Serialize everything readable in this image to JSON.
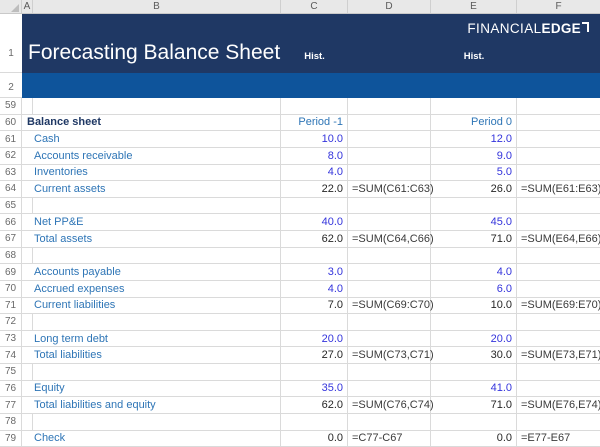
{
  "window": {
    "column_headers": [
      "A",
      "B",
      "C",
      "D",
      "E",
      "F"
    ],
    "row_numbers_top": [
      "1",
      "2"
    ]
  },
  "header": {
    "title": "Forecasting Balance Sheet",
    "hist_c": "Hist.",
    "hist_e": "Hist.",
    "logo_part1": "FINANCIAL",
    "logo_part2": "EDGE"
  },
  "colors": {
    "banner_navy": "#1F3864",
    "banner_band_blue": "#0E549B",
    "label_blue": "#2E75B6",
    "input_value_blue": "#3434DC",
    "calculated_value_black": "#262626",
    "formula_text_gray": "#3A3A3A"
  },
  "sheet": {
    "rows": [
      {
        "num": "59",
        "label": "",
        "c": "",
        "d": "",
        "e": "",
        "f": ""
      },
      {
        "num": "60",
        "label": "Balance sheet",
        "c": "Period -1",
        "d": "",
        "e": "Period 0",
        "f": ""
      },
      {
        "num": "61",
        "label": "Cash",
        "c": "10.0",
        "d": "",
        "e": "12.0",
        "f": ""
      },
      {
        "num": "62",
        "label": "Accounts receivable",
        "c": "8.0",
        "d": "",
        "e": "9.0",
        "f": ""
      },
      {
        "num": "63",
        "label": "Inventories",
        "c": "4.0",
        "d": "",
        "e": "5.0",
        "f": ""
      },
      {
        "num": "64",
        "label": "Current assets",
        "c": "22.0",
        "d": "=SUM(C61:C63)",
        "e": "26.0",
        "f": "=SUM(E61:E63)"
      },
      {
        "num": "65",
        "label": "",
        "c": "",
        "d": "",
        "e": "",
        "f": ""
      },
      {
        "num": "66",
        "label": "Net PP&E",
        "c": "40.0",
        "d": "",
        "e": "45.0",
        "f": ""
      },
      {
        "num": "67",
        "label": "Total assets",
        "c": "62.0",
        "d": "=SUM(C64,C66)",
        "e": "71.0",
        "f": "=SUM(E64,E66)"
      },
      {
        "num": "68",
        "label": "",
        "c": "",
        "d": "",
        "e": "",
        "f": ""
      },
      {
        "num": "69",
        "label": "Accounts payable",
        "c": "3.0",
        "d": "",
        "e": "4.0",
        "f": ""
      },
      {
        "num": "70",
        "label": "Accrued expenses",
        "c": "4.0",
        "d": "",
        "e": "6.0",
        "f": ""
      },
      {
        "num": "71",
        "label": "Current liabilities",
        "c": "7.0",
        "d": "=SUM(C69:C70)",
        "e": "10.0",
        "f": "=SUM(E69:E70)"
      },
      {
        "num": "72",
        "label": "",
        "c": "",
        "d": "",
        "e": "",
        "f": ""
      },
      {
        "num": "73",
        "label": "Long term debt",
        "c": "20.0",
        "d": "",
        "e": "20.0",
        "f": ""
      },
      {
        "num": "74",
        "label": "Total liabilities",
        "c": "27.0",
        "d": "=SUM(C73,C71)",
        "e": "30.0",
        "f": "=SUM(E73,E71)"
      },
      {
        "num": "75",
        "label": "",
        "c": "",
        "d": "",
        "e": "",
        "f": ""
      },
      {
        "num": "76",
        "label": "Equity",
        "c": "35.0",
        "d": "",
        "e": "41.0",
        "f": ""
      },
      {
        "num": "77",
        "label": "Total liabilities and equity",
        "c": "62.0",
        "d": "=SUM(C76,C74)",
        "e": "71.0",
        "f": "=SUM(E76,E74)"
      },
      {
        "num": "78",
        "label": "",
        "c": "",
        "d": "",
        "e": "",
        "f": ""
      },
      {
        "num": "79",
        "label": "Check",
        "c": "0.0",
        "d": "=C77-C67",
        "e": "0.0",
        "f": "=E77-E67"
      }
    ]
  }
}
